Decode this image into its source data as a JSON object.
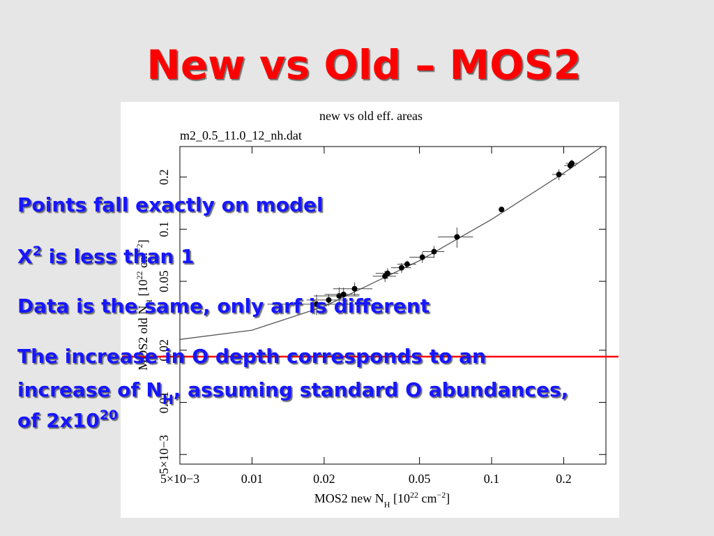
{
  "title": "New vs Old – MOS2",
  "bullets": [
    [
      [
        {
          "text": "Points fall exactly on model"
        }
      ]
    ],
    [
      [
        {
          "text": "X"
        },
        {
          "text": "2",
          "script": "sup"
        },
        {
          "text": " is less than 1"
        }
      ]
    ],
    [
      [
        {
          "text": "Data is the same, only arf is different"
        }
      ]
    ],
    [
      [
        {
          "text": "The increase in O depth corresponds to an"
        }
      ],
      [
        {
          "text": "increase of N"
        },
        {
          "text": "H",
          "script": "sub"
        },
        {
          "text": ", assuming standard O abundances,"
        }
      ],
      [
        {
          "text": "of 2x10"
        },
        {
          "text": "20",
          "script": "sup"
        }
      ]
    ]
  ],
  "chart_data": {
    "type": "scatter",
    "title": "new vs old eff. areas",
    "subtitle": "m2_0.5_11.0_12_nh.dat",
    "x_label": [
      {
        "text": "MOS2 new N"
      },
      {
        "text": "H",
        "script": "sub"
      },
      {
        "text": " [10"
      },
      {
        "text": "22",
        "script": "sup"
      },
      {
        "text": " cm"
      },
      {
        "text": "−2",
        "script": "sup"
      },
      {
        "text": "]"
      }
    ],
    "y_label": [
      {
        "text": "MOS2 old N"
      },
      {
        "text": "H",
        "script": "sub"
      },
      {
        "text": " [10"
      },
      {
        "text": "22",
        "script": "sup"
      },
      {
        "text": " cm"
      },
      {
        "text": "−2",
        "script": "sup"
      },
      {
        "text": "]"
      }
    ],
    "xscale": "log",
    "yscale": "log",
    "xlim": [
      0.005,
      0.3
    ],
    "ylim": [
      0.0044,
      0.3
    ],
    "xticks": [
      {
        "value": 0.005,
        "label": "5×10−3"
      },
      0.01,
      0.02,
      0.05,
      0.1,
      0.2
    ],
    "yticks": [
      {
        "value": 0.005,
        "label": "5×10−3"
      },
      0.01,
      0.02,
      0.05,
      0.1,
      0.2
    ],
    "points": {
      "color": "#000000",
      "x": [
        0.0186,
        0.0209,
        0.0231,
        0.0241,
        0.0268,
        0.0359,
        0.0368,
        0.0421,
        0.0444,
        0.0514,
        0.0575,
        0.0717,
        0.11,
        0.191,
        0.213,
        0.216
      ],
      "y": [
        0.0369,
        0.039,
        0.0412,
        0.042,
        0.0453,
        0.0535,
        0.0556,
        0.0599,
        0.0628,
        0.0689,
        0.0742,
        0.0902,
        0.13,
        0.207,
        0.233,
        0.24
      ],
      "xerr": [
        0.007,
        0.004,
        0.005,
        0.004,
        0.005,
        0.004,
        0.004,
        0.004,
        0.004,
        0.006,
        0.006,
        0.012,
        0.003,
        0.012,
        0.012,
        0.012
      ],
      "yerr": [
        0.005,
        0.003,
        0.005,
        0.004,
        0.004,
        0.004,
        0.004,
        0.004,
        0.003,
        0.005,
        0.006,
        0.012,
        0.003,
        0.015,
        0.012,
        0.012
      ]
    },
    "model": {
      "color": "#555555",
      "x": [
        0.005,
        0.01,
        0.02,
        0.05,
        0.1,
        0.2,
        0.3
      ],
      "y": [
        0.0231,
        0.0261,
        0.0358,
        0.0658,
        0.114,
        0.211,
        0.311
      ]
    }
  }
}
